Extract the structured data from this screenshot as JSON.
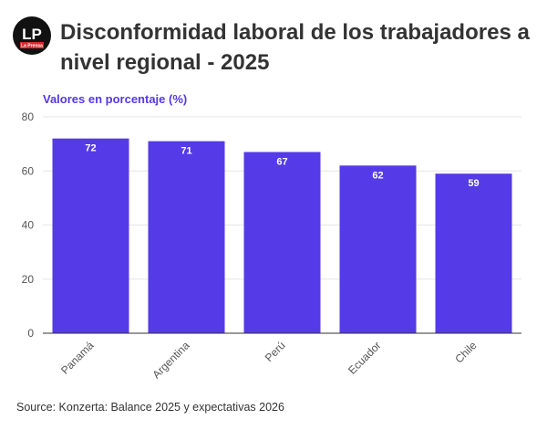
{
  "header": {
    "logo": {
      "text": "LP",
      "subtext": "La Prensa"
    },
    "title": "Disconformidad laboral de los trabajadores a nivel regional - 2025"
  },
  "chart_data": {
    "type": "bar",
    "subtitle": "Valores en porcentaje (%)",
    "categories": [
      "Panamá",
      "Argentina",
      "Perú",
      "Ecuador",
      "Chile"
    ],
    "values": [
      72,
      71,
      67,
      62,
      59
    ],
    "ylim": [
      0,
      80
    ],
    "yticks": [
      0,
      20,
      40,
      60,
      80
    ],
    "grid": true,
    "bar_color": "#553ae8",
    "xlabel": "",
    "ylabel": ""
  },
  "footer": {
    "source": "Source: Konzerta: Balance 2025 y expectativas 2026"
  }
}
